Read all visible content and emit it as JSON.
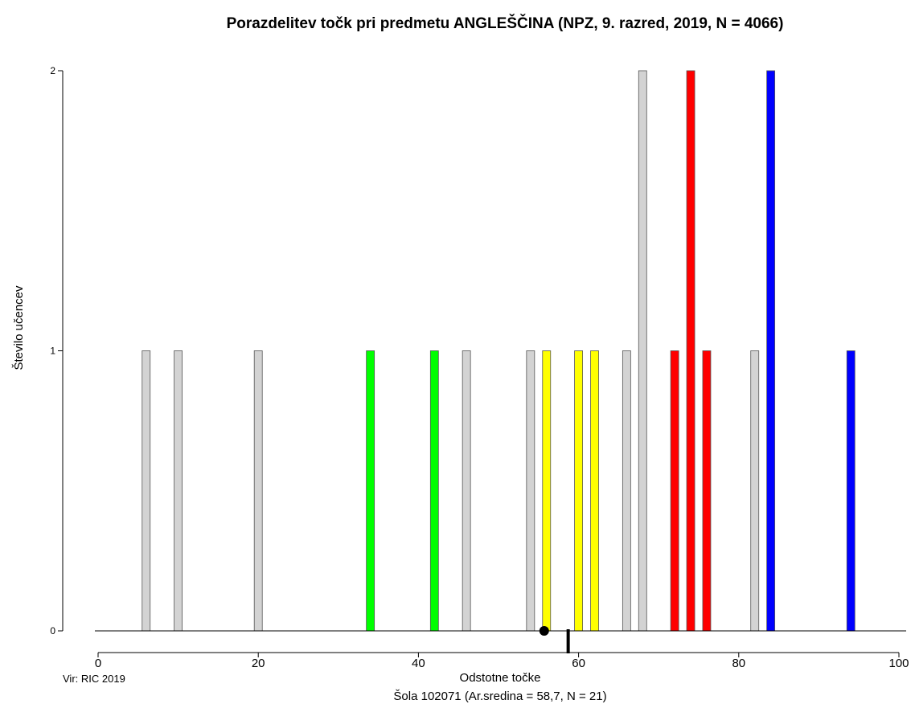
{
  "chart_data": {
    "type": "bar",
    "title": "Porazdelitev točk pri predmetu ANGLEŠČINA (NPZ, 9. razred, 2019, N = 4066)",
    "xlabel": "Odstotne točke",
    "ylabel": "Število učencev",
    "subtitle": "Šola 102071 (Ar.sredina = 58,7, N = 21)",
    "source": "Vir: RIC 2019",
    "xlim": [
      0,
      100
    ],
    "ylim": [
      0,
      2
    ],
    "x_ticks": [
      "0",
      "20",
      "40",
      "60",
      "80",
      "100"
    ],
    "y_ticks": [
      "0",
      "1",
      "2"
    ],
    "colors": {
      "gray": "#d3d3d3",
      "green": "#00ff00",
      "yellow": "#ffff00",
      "red": "#ff0000",
      "blue": "#0000ff"
    },
    "bars": [
      {
        "x": 6,
        "value": 1,
        "color": "gray"
      },
      {
        "x": 10,
        "value": 1,
        "color": "gray"
      },
      {
        "x": 20,
        "value": 1,
        "color": "gray"
      },
      {
        "x": 34,
        "value": 1,
        "color": "green"
      },
      {
        "x": 42,
        "value": 1,
        "color": "green"
      },
      {
        "x": 46,
        "value": 1,
        "color": "gray"
      },
      {
        "x": 54,
        "value": 1,
        "color": "gray"
      },
      {
        "x": 56,
        "value": 1,
        "color": "yellow"
      },
      {
        "x": 60,
        "value": 1,
        "color": "yellow"
      },
      {
        "x": 62,
        "value": 1,
        "color": "yellow"
      },
      {
        "x": 66,
        "value": 1,
        "color": "gray"
      },
      {
        "x": 68,
        "value": 2,
        "color": "gray"
      },
      {
        "x": 72,
        "value": 1,
        "color": "red"
      },
      {
        "x": 74,
        "value": 2,
        "color": "red"
      },
      {
        "x": 76,
        "value": 1,
        "color": "red"
      },
      {
        "x": 82,
        "value": 1,
        "color": "gray"
      },
      {
        "x": 84,
        "value": 2,
        "color": "blue"
      },
      {
        "x": 94,
        "value": 1,
        "color": "blue"
      }
    ],
    "markers": {
      "dot_x": 55.7,
      "mean_line_x": 58.7
    },
    "grid": false
  }
}
